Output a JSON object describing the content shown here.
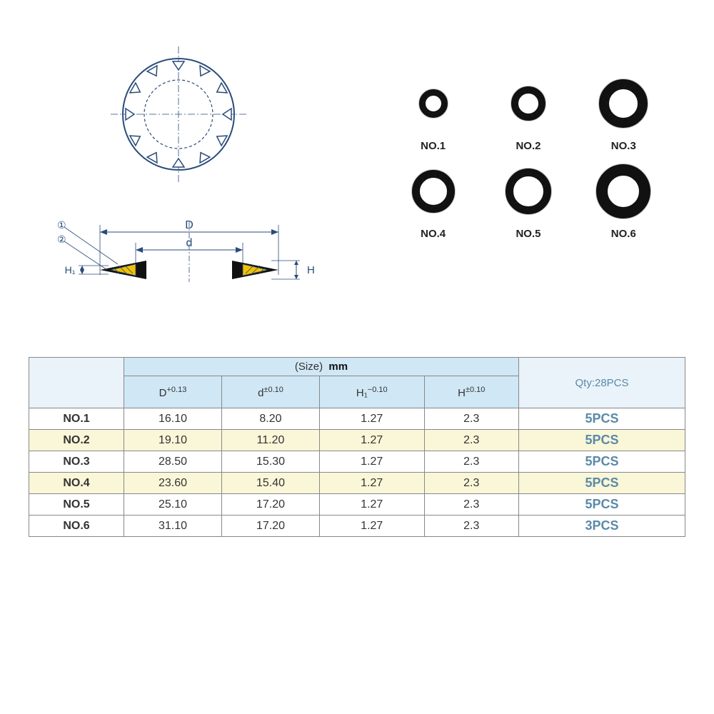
{
  "diagram": {
    "stroke": "#2a4b7a",
    "fill_hatch": "#f2c200",
    "type": "technical-drawing",
    "labels": {
      "D": "D",
      "d": "d",
      "H": "H",
      "H1": "H₁",
      "circ1": "①",
      "circ2": "②"
    }
  },
  "washers": {
    "items": [
      {
        "label": "NO.1",
        "outer_r": 20,
        "inner_r": 11,
        "stroke": "#111111"
      },
      {
        "label": "NO.2",
        "outer_r": 24,
        "inner_r": 14,
        "stroke": "#111111"
      },
      {
        "label": "NO.3",
        "outer_r": 34,
        "inner_r": 20,
        "stroke": "#111111"
      },
      {
        "label": "NO.4",
        "outer_r": 30,
        "inner_r": 19,
        "stroke": "#111111"
      },
      {
        "label": "NO.5",
        "outer_r": 32,
        "inner_r": 21,
        "stroke": "#111111"
      },
      {
        "label": "NO.6",
        "outer_r": 38,
        "inner_r": 22,
        "stroke": "#111111"
      }
    ],
    "label_fontsize": 15,
    "label_color": "#222222"
  },
  "table": {
    "size_header": "(Size)",
    "size_unit": "mm",
    "qty_header": "Qty:28PCS",
    "header_bg": "#d0e7f5",
    "qty_header_bg": "#eaf3fa",
    "qty_header_color": "#5a8aa8",
    "border_color": "#888888",
    "row_highlight_bg": "#faf6d8",
    "row_plain_bg": "#ffffff",
    "columns": [
      {
        "sym": "D",
        "tol": "+0.13"
      },
      {
        "sym": "d",
        "tol": "±0.10"
      },
      {
        "sym": "H₁",
        "tol": "−0.10"
      },
      {
        "sym": "H",
        "tol": "±0.10"
      }
    ],
    "rows": [
      {
        "no": "NO.1",
        "D": "16.10",
        "d": "8.20",
        "H1": "1.27",
        "H": "2.3",
        "qty": "5PCS",
        "hl": false
      },
      {
        "no": "NO.2",
        "D": "19.10",
        "d": "11.20",
        "H1": "1.27",
        "H": "2.3",
        "qty": "5PCS",
        "hl": true
      },
      {
        "no": "NO.3",
        "D": "28.50",
        "d": "15.30",
        "H1": "1.27",
        "H": "2.3",
        "qty": "5PCS",
        "hl": false
      },
      {
        "no": "NO.4",
        "D": "23.60",
        "d": "15.40",
        "H1": "1.27",
        "H": "2.3",
        "qty": "5PCS",
        "hl": true
      },
      {
        "no": "NO.5",
        "D": "25.10",
        "d": "17.20",
        "H1": "1.27",
        "H": "2.3",
        "qty": "5PCS",
        "hl": false
      },
      {
        "no": "NO.6",
        "D": "31.10",
        "d": "17.20",
        "H1": "1.27",
        "H": "2.3",
        "qty": "3PCS",
        "hl": false
      }
    ]
  }
}
